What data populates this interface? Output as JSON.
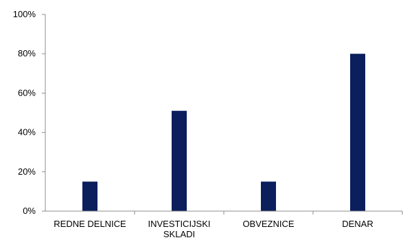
{
  "chart_data": {
    "type": "bar",
    "categories": [
      "REDNE DELNICE",
      "INVESTICIJSKI SKLADI",
      "OBVEZNICE",
      "DENAR"
    ],
    "category_label_lines": [
      [
        "REDNE DELNICE"
      ],
      [
        "INVESTICIJSKI",
        "SKLADI"
      ],
      [
        "OBVEZNICE"
      ],
      [
        "DENAR"
      ]
    ],
    "values": [
      15,
      51,
      15,
      80
    ],
    "ylim": [
      0,
      100
    ],
    "yticks": [
      0,
      20,
      40,
      60,
      80,
      100
    ],
    "ytick_labels": [
      "0%",
      "20%",
      "40%",
      "60%",
      "80%",
      "100%"
    ],
    "title": "",
    "xlabel": "",
    "ylabel": "",
    "grid": false,
    "legend": "none",
    "colors": {
      "bar": "#0b1f5c",
      "axis": "#8c8c8c"
    }
  }
}
